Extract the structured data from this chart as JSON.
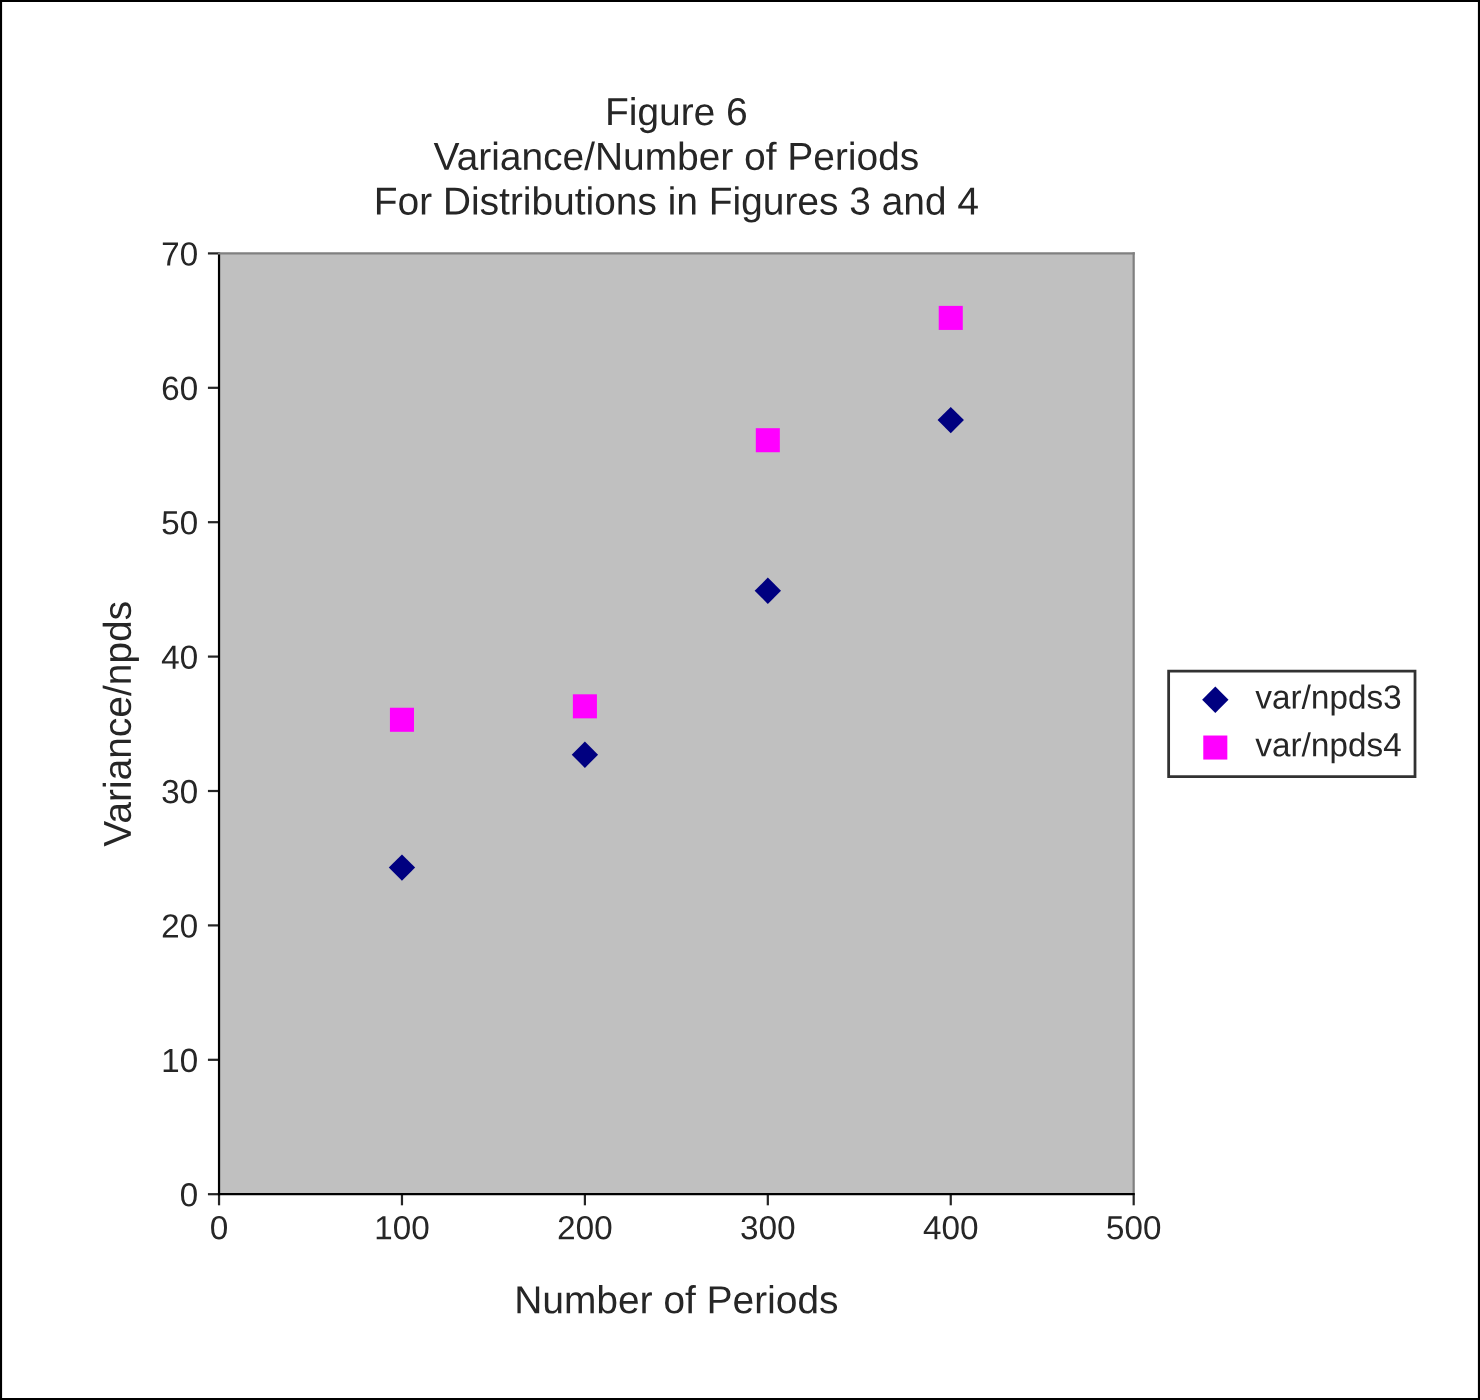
{
  "chart_data": {
    "type": "scatter",
    "title": "Figure 6\nVariance/Number of Periods\nFor Distributions in Figures 3 and 4",
    "xlabel": "Number of Periods",
    "ylabel": "Variance/npds",
    "x": [
      100,
      200,
      300,
      400
    ],
    "series": [
      {
        "name": "var/npds3",
        "color": "#000080",
        "marker": "diamond",
        "values": [
          24.3,
          32.7,
          44.9,
          57.6
        ]
      },
      {
        "name": "var/npds4",
        "color": "#ff00ff",
        "marker": "square",
        "values": [
          35.3,
          36.3,
          56.1,
          65.2
        ]
      }
    ],
    "xlim": [
      0,
      500
    ],
    "xticks": [
      0,
      100,
      200,
      300,
      400,
      500
    ],
    "ylim": [
      0,
      70
    ],
    "yticks": [
      0,
      10,
      20,
      30,
      40,
      50,
      60,
      70
    ],
    "grid": false,
    "legend": "right"
  }
}
